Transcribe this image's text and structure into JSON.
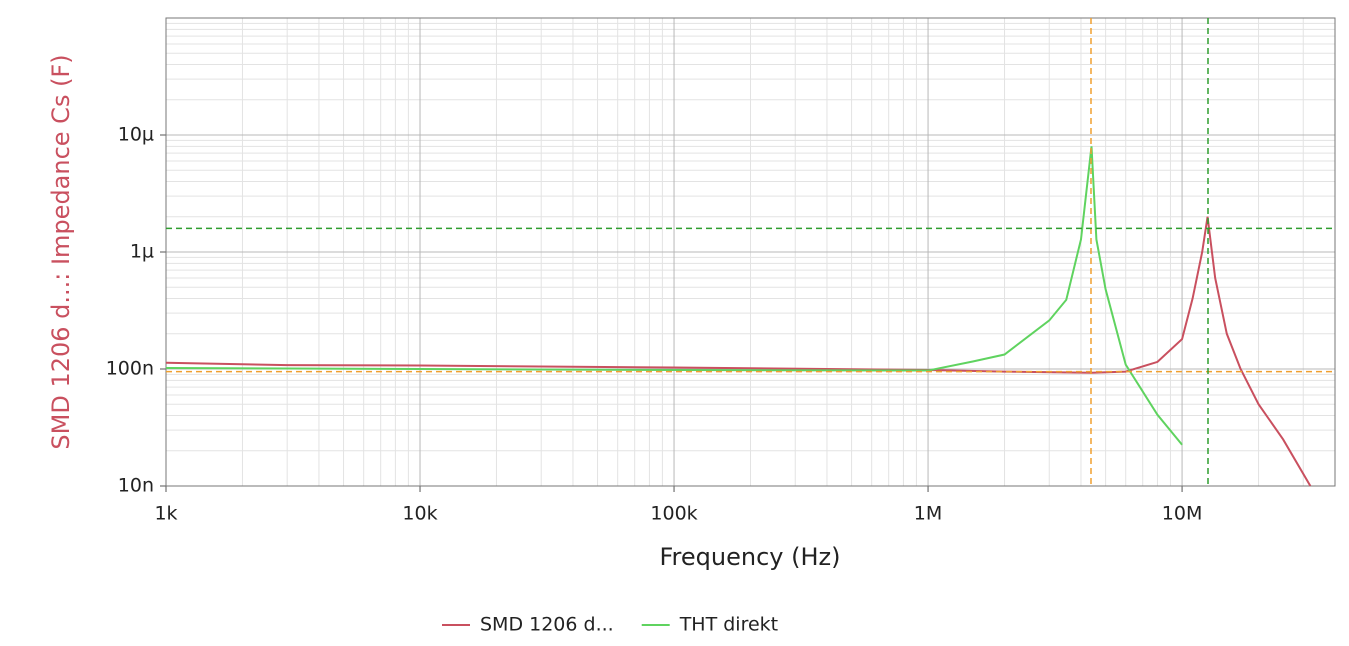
{
  "chart_data": {
    "type": "line",
    "xlabel": "Frequency (Hz)",
    "ylabel": "SMD 1206 d...: Impedance Cs (F)",
    "xscale": "log",
    "yscale": "log",
    "grid": true,
    "legend": "bottom",
    "xlim": [
      1000,
      40000000
    ],
    "ylim": [
      1e-08,
      0.0001
    ],
    "xticks": [
      {
        "value": 1000,
        "label": "1k"
      },
      {
        "value": 10000,
        "label": "10k"
      },
      {
        "value": 100000,
        "label": "100k"
      },
      {
        "value": 1000000,
        "label": "1M"
      },
      {
        "value": 10000000,
        "label": "10M"
      }
    ],
    "yticks": [
      {
        "value": 1e-08,
        "label": "10n"
      },
      {
        "value": 1e-07,
        "label": "100n"
      },
      {
        "value": 1e-06,
        "label": "1µ"
      },
      {
        "value": 1e-05,
        "label": "10µ"
      }
    ],
    "series": [
      {
        "name": "SMD 1206 d...",
        "color": "#c9505f",
        "x": [
          1000,
          3000,
          10000,
          100000,
          1000000,
          2000000,
          4400000,
          6000000,
          8000000,
          10000000,
          11000000,
          12000000,
          12600000,
          13500000,
          15000000,
          17000000,
          20000000,
          25000000,
          32000000
        ],
        "values": [
          1.13e-07,
          1.08e-07,
          1.07e-07,
          1.03e-07,
          9.8e-08,
          9.5e-08,
          9.3e-08,
          9.5e-08,
          1.15e-07,
          1.8e-07,
          4e-07,
          1e-06,
          2e-06,
          6e-07,
          2e-07,
          1e-07,
          5e-08,
          2.5e-08,
          1e-08
        ]
      },
      {
        "name": "THT direkt",
        "color": "#5fd35f",
        "x": [
          1000,
          10000,
          100000,
          1000000,
          1500000,
          2000000,
          3000000,
          3500000,
          4000000,
          4400000,
          4600000,
          5000000,
          6000000,
          8000000,
          10000000
        ],
        "values": [
          1.02e-07,
          1e-07,
          9.8e-08,
          9.7e-08,
          1.16e-07,
          1.33e-07,
          2.6e-07,
          3.9e-07,
          1.28e-06,
          8e-06,
          1.28e-06,
          4.8e-07,
          1.09e-07,
          4.06e-08,
          2.25e-08
        ]
      }
    ],
    "cursors": [
      {
        "color": "#f0a030",
        "x": 4380000,
        "y": 9.5e-08
      },
      {
        "color": "#2e9e2e",
        "x": 12650000,
        "y": 1.59e-06
      }
    ]
  }
}
